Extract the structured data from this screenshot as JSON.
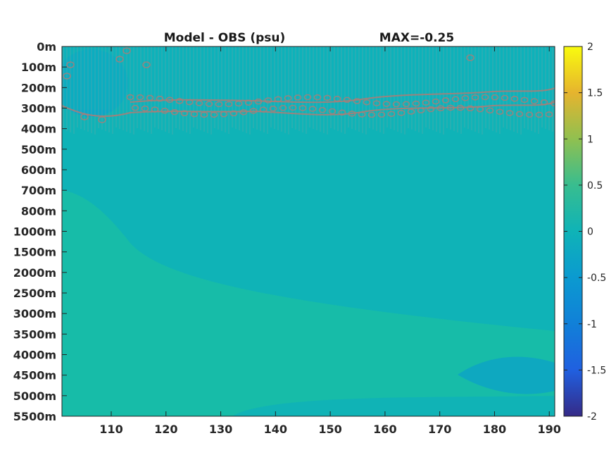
{
  "chart_data": {
    "type": "heatmap",
    "title": "Model - OBS (psu)",
    "annotation": "MAX=-0.25",
    "xlabel": "",
    "ylabel": "",
    "x_ticks": [
      "110",
      "120",
      "130",
      "140",
      "150",
      "160",
      "170",
      "180",
      "190"
    ],
    "x_range": [
      101,
      191
    ],
    "y_ticks": [
      "0m",
      "100m",
      "200m",
      "300m",
      "400m",
      "500m",
      "600m",
      "700m",
      "800m",
      "1000m",
      "1500m",
      "2000m",
      "2500m",
      "3000m",
      "3500m",
      "4000m",
      "4500m",
      "5000m",
      "5500m"
    ],
    "y_axis_direction": "depth increasing downward",
    "colorbar": {
      "range": [
        -2,
        2
      ],
      "ticks": [
        "2",
        "1.5",
        "1",
        "0.5",
        "0",
        "-0.5",
        "-1",
        "-1.5",
        "-2"
      ],
      "colormap": "parula"
    },
    "field_description": {
      "background_value": 0.0,
      "surface_minimum_region": {
        "x": [
          101,
          113
        ],
        "depth": [
          "0m",
          "300m"
        ],
        "value": -0.2
      },
      "contour_band_depths": [
        "200m",
        "300m"
      ],
      "slightly_positive_region": {
        "x": [
          101,
          191
        ],
        "depth": [
          "2000m",
          "5500m"
        ],
        "value": 0.1
      },
      "deep_negative_patch": {
        "x": [
          175,
          191
        ],
        "depth": [
          "4000m",
          "5000m"
        ],
        "value": -0.1
      }
    },
    "colors": {
      "zero": "#0fb3b7",
      "slightly_positive": "#17bca8",
      "slightly_negative": "#0ba8c6",
      "contour": "#b37a73"
    }
  }
}
